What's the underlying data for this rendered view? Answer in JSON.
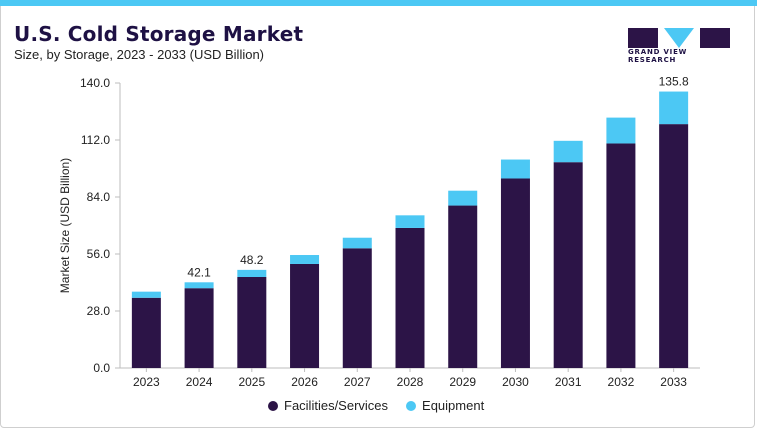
{
  "header": {
    "title": "U.S. Cold Storage Market",
    "subtitle": "Size, by Storage, 2023 - 2033 (USD Billion)",
    "logo_text": "GRAND VIEW RESEARCH"
  },
  "colors": {
    "accent_bar": "#4cc8f4",
    "facilities": "#2c1447",
    "equipment": "#4cc8f4",
    "title": "#1e1144"
  },
  "chart_data": {
    "type": "bar",
    "stacked": true,
    "categories": [
      "2023",
      "2024",
      "2025",
      "2026",
      "2027",
      "2028",
      "2029",
      "2030",
      "2031",
      "2032",
      "2033"
    ],
    "series": [
      {
        "name": "Facilities/Services",
        "color": "#2c1447",
        "values": [
          34.5,
          39.2,
          44.7,
          51.1,
          58.8,
          68.8,
          79.8,
          93.1,
          101.1,
          110.3,
          119.8
        ]
      },
      {
        "name": "Equipment",
        "color": "#4cc8f4",
        "values": [
          3.0,
          2.9,
          3.5,
          4.4,
          5.2,
          6.2,
          7.3,
          9.3,
          10.5,
          12.7,
          16.0
        ]
      }
    ],
    "data_labels": [
      {
        "category": "2024",
        "text": "42.1"
      },
      {
        "category": "2025",
        "text": "48.2"
      },
      {
        "category": "2033",
        "text": "135.8"
      }
    ],
    "ylabel": "Market Size (USD Billion)",
    "xlabel": "",
    "ylim": [
      0,
      140
    ],
    "yticks": [
      "0.0",
      "28.0",
      "56.0",
      "84.0",
      "112.0",
      "140.0"
    ],
    "ytick_values": [
      0,
      28,
      56,
      84,
      112,
      140
    ],
    "grid": false,
    "legend_position": "bottom"
  }
}
